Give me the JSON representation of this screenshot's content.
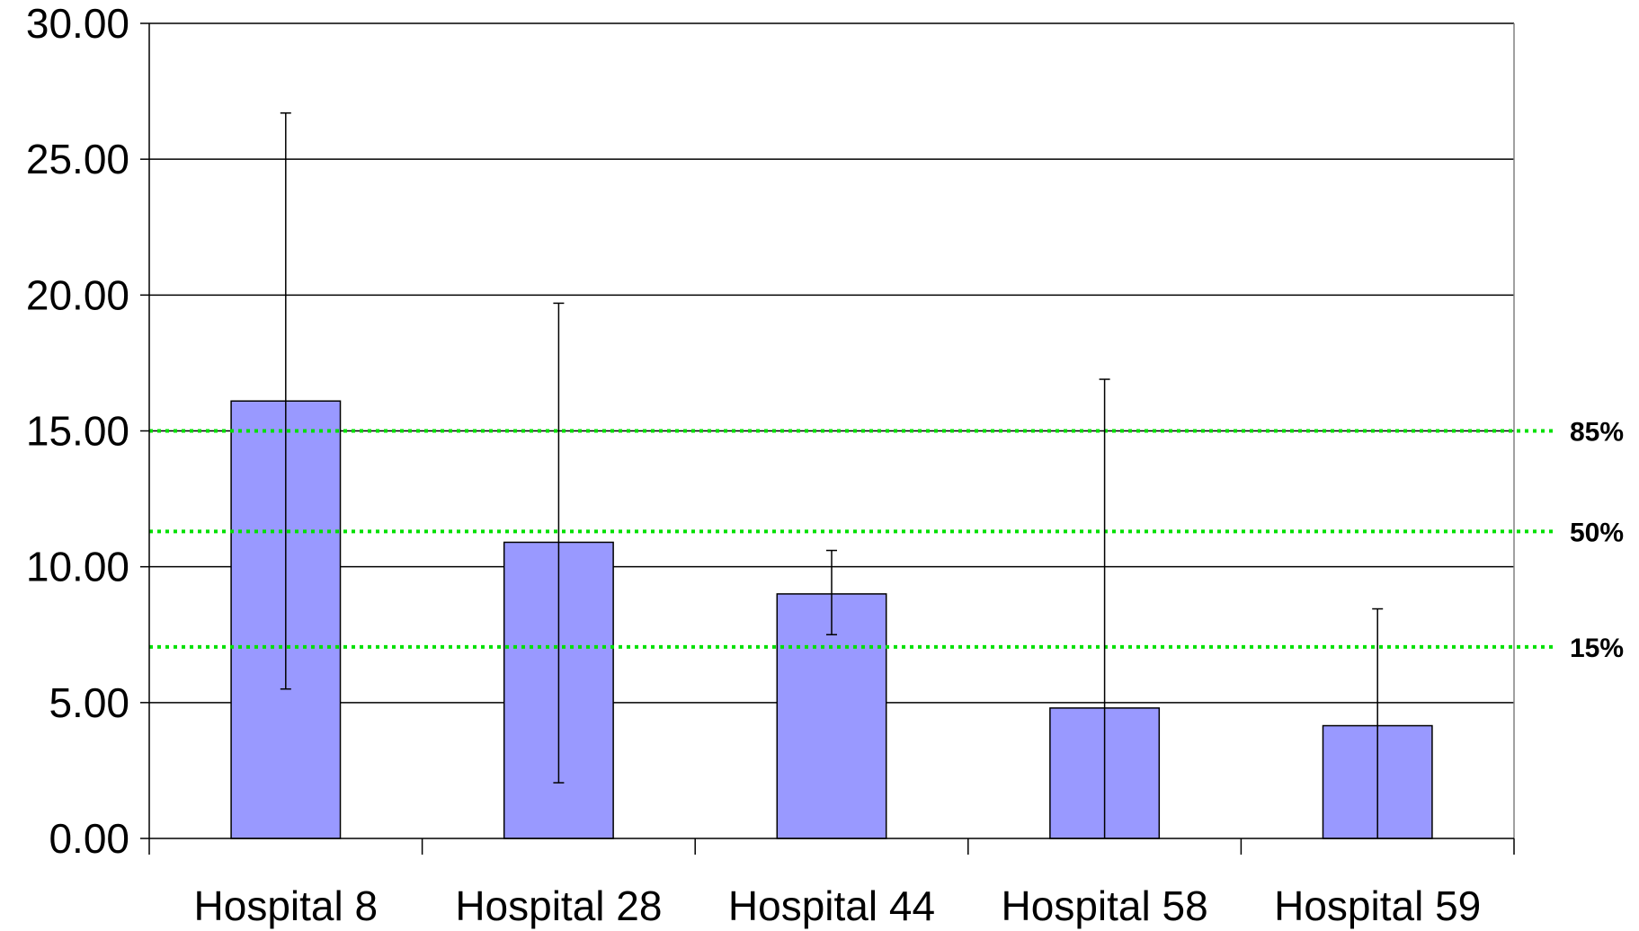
{
  "chart_data": {
    "type": "bar",
    "title": "",
    "xlabel": "",
    "ylabel": "",
    "categories": [
      "Hospital 8",
      "Hospital 28",
      "Hospital 44",
      "Hospital 58",
      "Hospital 59"
    ],
    "series": [
      {
        "values": [
          16.1,
          10.9,
          9.0,
          4.8,
          4.15
        ],
        "error_low": [
          5.5,
          2.05,
          7.5,
          0.0,
          0.0
        ],
        "error_high": [
          26.7,
          19.7,
          10.6,
          16.9,
          8.45
        ],
        "color": "#9999ff"
      }
    ],
    "ylim": [
      0,
      30
    ],
    "yticks": [
      "0.00",
      "5.00",
      "10.00",
      "15.00",
      "20.00",
      "25.00",
      "30.00"
    ],
    "grid": true,
    "reference_lines": [
      {
        "label": "85%",
        "value": 15.0,
        "color": "#00e000"
      },
      {
        "label": "50%",
        "value": 11.3,
        "color": "#00e000"
      },
      {
        "label": "15%",
        "value": 7.05,
        "color": "#00e000"
      }
    ]
  }
}
